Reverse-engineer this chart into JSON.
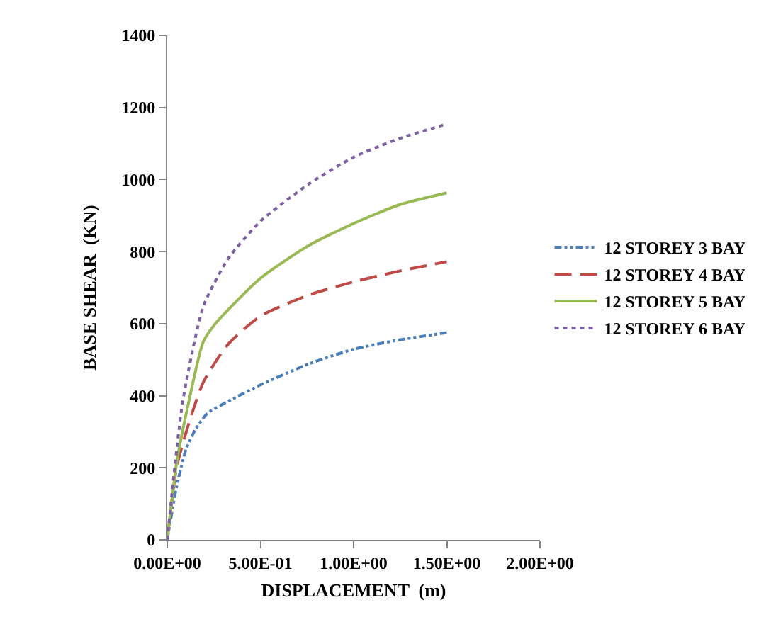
{
  "chart_data": {
    "type": "line",
    "xlabel": "DISPLACEMENT  (m)",
    "ylabel": "BASE SHEAR  (KN)",
    "xlim": [
      0,
      2
    ],
    "xticks": [
      {
        "value": 0,
        "label": "0.00E+00"
      },
      {
        "value": 0.5,
        "label": "5.00E-01"
      },
      {
        "value": 1,
        "label": "1.00E+00"
      },
      {
        "value": 1.5,
        "label": "1.50E+00"
      },
      {
        "value": 2,
        "label": "2.00E+00"
      }
    ],
    "ylim": [
      0,
      1400
    ],
    "yticks": [
      0,
      200,
      400,
      600,
      800,
      1000,
      1200,
      1400
    ],
    "grid": false,
    "legend": "right",
    "marker": "none",
    "series": [
      {
        "name": "12 STOREY 3 BAY",
        "color": "#4a7ebb",
        "line_style": "dashdot",
        "x": [
          0,
          0.05,
          0.1,
          0.15,
          0.215,
          0.325,
          0.5,
          0.763,
          1.0,
          1.246,
          1.5
        ],
        "values": [
          0,
          147,
          250,
          305,
          351,
          384,
          430,
          489,
          529,
          555,
          575
        ]
      },
      {
        "name": "12 STOREY 4 BAY",
        "color": "#be4b48",
        "line_style": "dashed",
        "x": [
          0,
          0.05,
          0.105,
          0.193,
          0.325,
          0.5,
          0.763,
          1.0,
          1.246,
          1.5
        ],
        "values": [
          0,
          200,
          305,
          437,
          542,
          621,
          680,
          716,
          746,
          772
        ]
      },
      {
        "name": "12 STOREY 5 BAY",
        "color": "#98b954",
        "line_style": "solid",
        "x": [
          0,
          0.05,
          0.105,
          0.193,
          0.26,
          0.5,
          0.763,
          1.0,
          1.246,
          1.5
        ],
        "values": [
          0,
          213,
          358,
          549,
          601,
          726,
          818,
          878,
          930,
          963
        ]
      },
      {
        "name": "12 STOREY 6 BAY",
        "color": "#7d60a0",
        "line_style": "dotted",
        "x": [
          0,
          0.04,
          0.083,
          0.193,
          0.325,
          0.5,
          0.763,
          1.0,
          1.246,
          1.5
        ],
        "values": [
          0,
          200,
          384,
          647,
          779,
          884,
          989,
          1062,
          1114,
          1154
        ]
      }
    ]
  }
}
